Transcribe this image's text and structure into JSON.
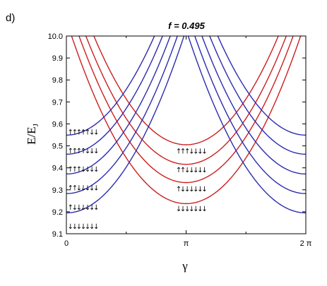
{
  "panel_label": "d)",
  "colors": {
    "red": "#cc1f1f",
    "blue": "#2b2bb0",
    "axis": "#000000"
  },
  "chart_data": {
    "type": "line",
    "title": "f = 0.495",
    "xlabel": "γ",
    "ylabel_main": "E/E",
    "ylabel_sub": "J",
    "xlim": [
      0,
      6.2832
    ],
    "ylim": [
      9.1,
      10.0
    ],
    "xticks": [
      {
        "value": 0,
        "label": "0"
      },
      {
        "value": 3.1416,
        "label": "π"
      },
      {
        "value": 6.2832,
        "label": "2 π"
      }
    ],
    "yticks": [
      {
        "value": 9.1,
        "label": "9.1"
      },
      {
        "value": 9.2,
        "label": "9.2"
      },
      {
        "value": 9.3,
        "label": "9.3"
      },
      {
        "value": 9.4,
        "label": "9.4"
      },
      {
        "value": 9.5,
        "label": "9.5"
      },
      {
        "value": 9.6,
        "label": "9.6"
      },
      {
        "value": 9.7,
        "label": "9.7"
      },
      {
        "value": 9.8,
        "label": "9.8"
      },
      {
        "value": 9.9,
        "label": "9.9"
      },
      {
        "value": 10.0,
        "label": "10.0"
      }
    ],
    "grid": false,
    "legend": "none",
    "curvature": 0.0845,
    "series": [
      {
        "color": "red",
        "center": 3.1416,
        "min": 9.237
      },
      {
        "color": "red",
        "center": 3.1416,
        "min": 9.333
      },
      {
        "color": "red",
        "center": 3.1416,
        "min": 9.416
      },
      {
        "color": "red",
        "center": 3.1416,
        "min": 9.505
      },
      {
        "color": "blue",
        "center": 0,
        "min": 9.195
      },
      {
        "color": "blue",
        "center": 0,
        "min": 9.283
      },
      {
        "color": "blue",
        "center": 0,
        "min": 9.372
      },
      {
        "color": "blue",
        "center": 0,
        "min": 9.462
      },
      {
        "color": "blue",
        "center": 0,
        "min": 9.549
      },
      {
        "color": "blue",
        "center": 6.2832,
        "min": 9.195
      },
      {
        "color": "blue",
        "center": 6.2832,
        "min": 9.283
      },
      {
        "color": "blue",
        "center": 6.2832,
        "min": 9.372
      },
      {
        "color": "blue",
        "center": 6.2832,
        "min": 9.462
      },
      {
        "color": "blue",
        "center": 6.2832,
        "min": 9.549
      }
    ],
    "annotations": [
      {
        "text": "↓↓↓↓↓↓↓",
        "x": 0.03,
        "y": 9.135
      },
      {
        "text": "↑↓↓↓↓↓↓",
        "x": 0.03,
        "y": 9.222
      },
      {
        "text": "↑↑↓↓↓↓↓",
        "x": 0.03,
        "y": 9.31
      },
      {
        "text": "↑↑↑↓↓↓↓",
        "x": 0.03,
        "y": 9.395
      },
      {
        "text": "↑↑↑↑↓↓↓",
        "x": 0.03,
        "y": 9.48
      },
      {
        "text": "↑↑↑↑↑↓↓",
        "x": 0.03,
        "y": 9.565
      },
      {
        "text": "↓↓↓↓↓↓↓",
        "x": 2.87,
        "y": 9.215
      },
      {
        "text": "↑↓↓↓↓↓↓",
        "x": 2.87,
        "y": 9.305
      },
      {
        "text": "↑↑↓↓↓↓↓",
        "x": 2.87,
        "y": 9.393
      },
      {
        "text": "↑↑↑↓↓↓↓",
        "x": 2.87,
        "y": 9.478
      }
    ]
  }
}
